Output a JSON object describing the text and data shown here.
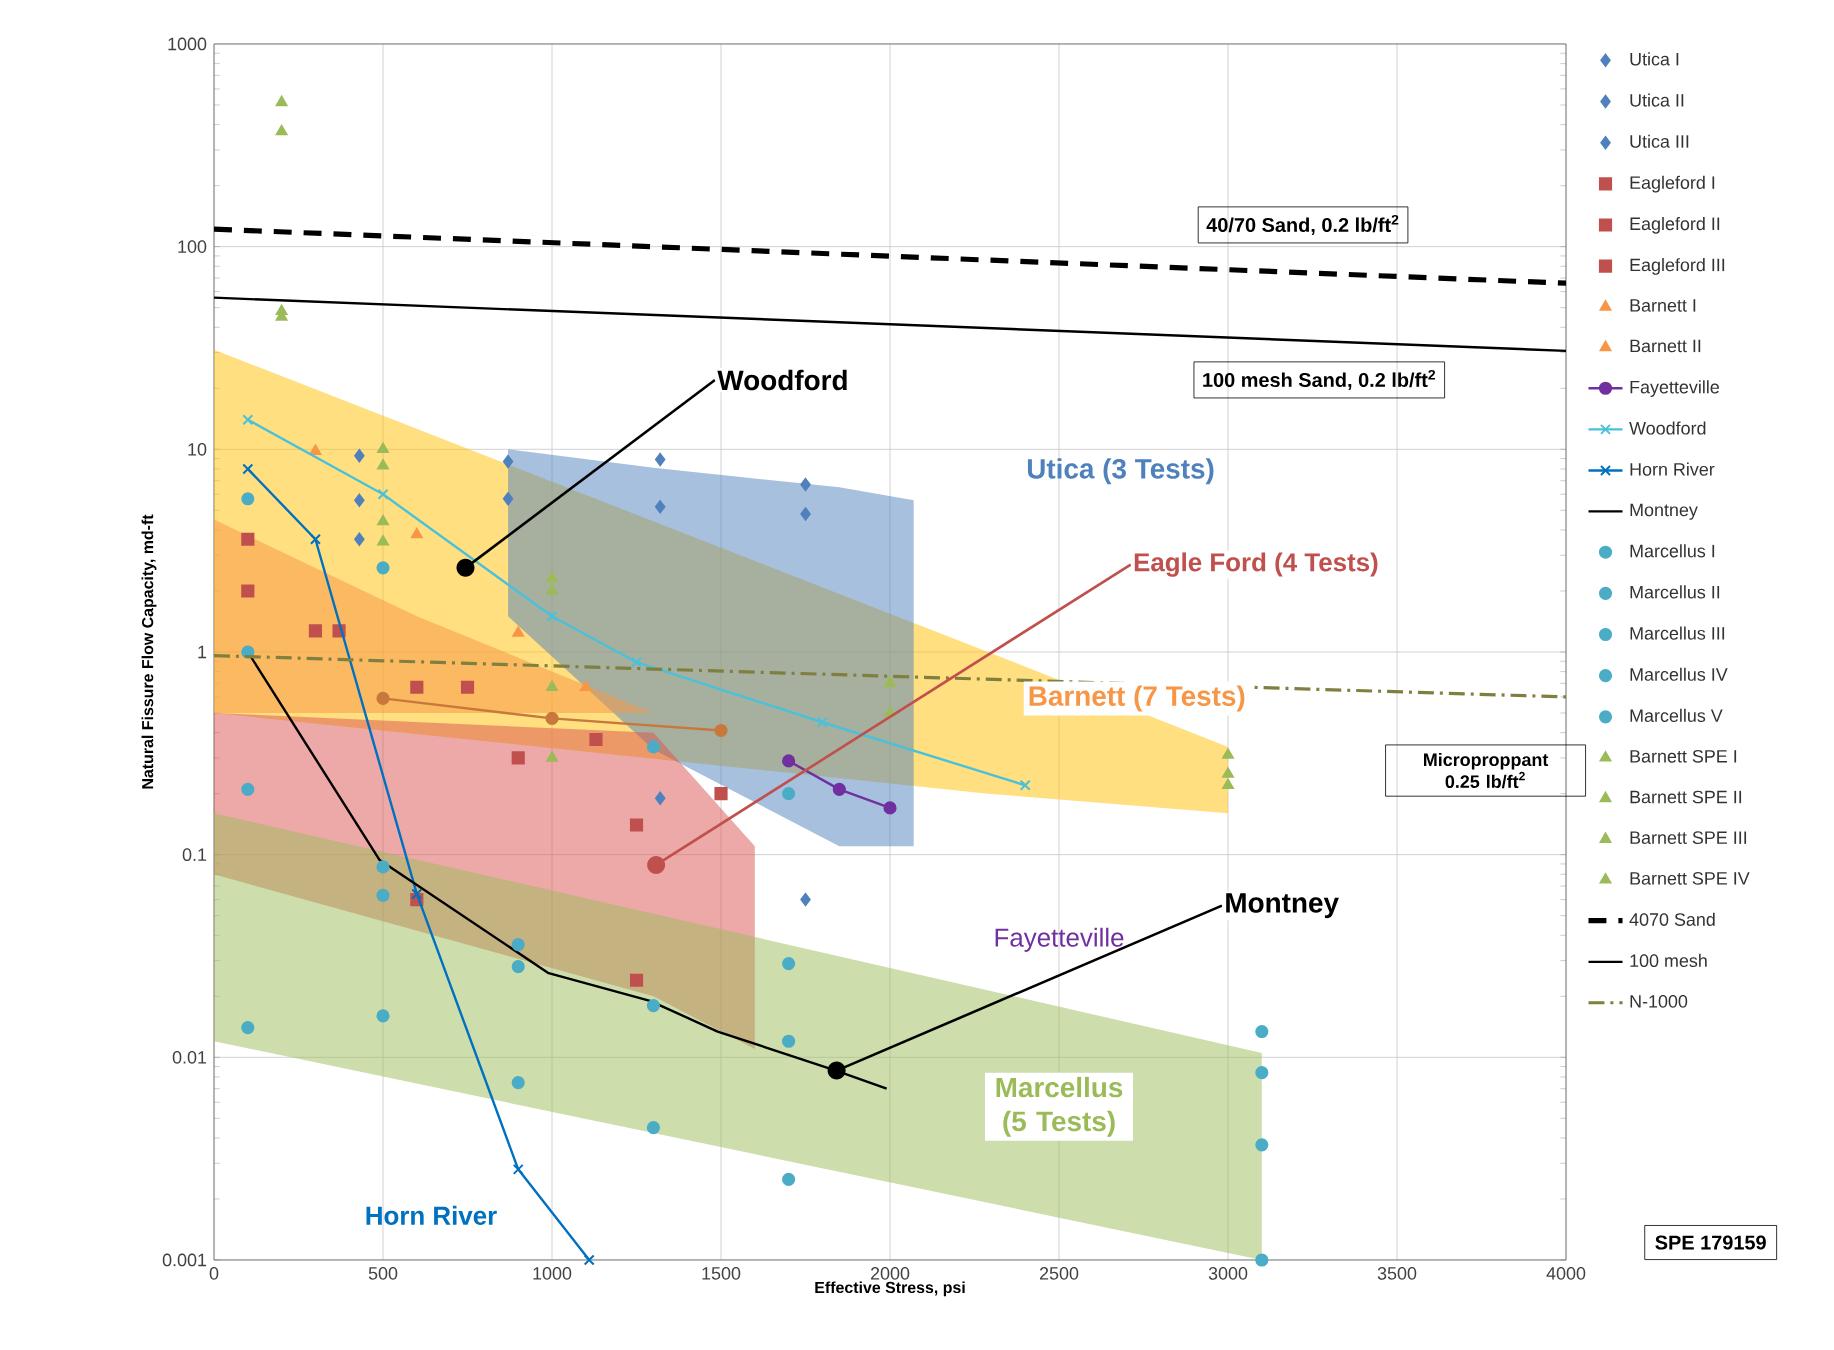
{
  "chart_data": {
    "type": "scatter",
    "xlabel": "Effective Stress, psi",
    "ylabel": "Natural Fissure Flow Capacity, md-ft",
    "xlim": [
      0,
      4000
    ],
    "xticks": [
      0,
      500,
      1000,
      1500,
      2000,
      2500,
      3000,
      3500,
      4000
    ],
    "ylim": [
      0.001,
      1000
    ],
    "yticks": [
      0.001,
      0.01,
      0.1,
      1,
      10,
      100,
      1000
    ],
    "log": "y",
    "grid": true,
    "legend": "right",
    "series": [
      {
        "type": "line",
        "color": "#ffc000",
        "x": [
          0,
          2290,
          3000
        ],
        "values": [
          null,
          null,
          null
        ],
        "upper": [
          31,
          1.0,
          0.34
        ],
        "lower": [
          0.5,
          0.2,
          0.16
        ]
      },
      {
        "type": "line",
        "color": "#4f81bd",
        "x": [
          870,
          1300,
          1850,
          2070
        ],
        "values": [
          null,
          null,
          null,
          null
        ],
        "upper": [
          10,
          8.1,
          6.5,
          5.6
        ],
        "lower": [
          1.5,
          0.33,
          0.11,
          0.11
        ]
      },
      {
        "type": "line",
        "color": "#f79646",
        "x": [
          0,
          600,
          1300
        ],
        "values": [
          null,
          null,
          null
        ],
        "upper": [
          4.5,
          1.5,
          0.5
        ],
        "lower": [
          0.5,
          0.5,
          0.5
        ]
      },
      {
        "type": "line",
        "color": "#d9534f",
        "x": [
          0,
          1300,
          1600
        ],
        "values": [
          null,
          null,
          null
        ],
        "upper": [
          0.5,
          0.4,
          0.11
        ],
        "lower": [
          0.08,
          0.02,
          0.011
        ]
      },
      {
        "type": "line",
        "color": "#9bbb59",
        "x": [
          0,
          3100
        ],
        "values": [
          null,
          null
        ],
        "upper": [
          0.16,
          0.0105
        ],
        "lower": [
          0.012,
          0.001
        ]
      },
      {
        "name": "Utica I",
        "marker": "diamond",
        "color": "#4f81bd",
        "x": [
          430,
          870,
          1320,
          1750
        ],
        "values": [
          9.3,
          8.7,
          8.9,
          6.7
        ]
      },
      {
        "name": "Utica II",
        "marker": "diamond",
        "color": "#4f81bd",
        "x": [
          430,
          870,
          1320,
          1750
        ],
        "values": [
          5.6,
          5.7,
          5.2,
          4.8
        ]
      },
      {
        "name": "Utica III",
        "marker": "diamond",
        "color": "#4f81bd",
        "x": [
          430,
          1320,
          1750
        ],
        "values": [
          3.6,
          0.19,
          0.06
        ]
      },
      {
        "name": "Eagleford I",
        "marker": "square",
        "color": "#c0504d",
        "x": [
          100,
          300,
          600,
          900,
          1250
        ],
        "values": [
          3.6,
          1.27,
          0.67,
          0.3,
          0.14
        ]
      },
      {
        "name": "Eagleford II",
        "marker": "square",
        "color": "#c0504d",
        "x": [
          100,
          370,
          750,
          1130,
          1500
        ],
        "values": [
          2.0,
          1.27,
          0.67,
          0.37,
          0.2
        ]
      },
      {
        "name": "Eagleford III",
        "marker": "square",
        "color": "#c0504d",
        "x": [
          600,
          1250
        ],
        "values": [
          0.06,
          0.024
        ]
      },
      {
        "name": "Barnett I",
        "marker": "triangle",
        "color": "#f79646",
        "x": [
          300,
          600,
          900
        ],
        "values": [
          9.8,
          3.8,
          1.24
        ]
      },
      {
        "name": "Barnett II",
        "marker": "triangle",
        "color": "#f79646",
        "x": [
          1100
        ],
        "values": [
          0.67
        ]
      },
      {
        "type": "line",
        "marker": "circle",
        "color": "#c8783c",
        "x": [
          500,
          1000,
          1500
        ],
        "values": [
          0.59,
          0.47,
          0.41
        ]
      },
      {
        "name": "Fayetteville",
        "type": "line",
        "marker": "circle",
        "color": "#7030a0",
        "x": [
          1700,
          1850,
          2000
        ],
        "values": [
          0.29,
          0.21,
          0.17
        ]
      },
      {
        "name": "Woodford",
        "type": "line",
        "marker": "cross",
        "color": "#4bc1d9",
        "x": [
          100,
          500,
          1000,
          1250,
          1800,
          2400
        ],
        "values": [
          14,
          6,
          1.5,
          0.89,
          0.45,
          0.22
        ]
      },
      {
        "name": "Horn River",
        "type": "line",
        "marker": "cross",
        "color": "#0070c0",
        "x": [
          100,
          300,
          600,
          900,
          1110
        ],
        "values": [
          8,
          3.6,
          0.064,
          0.0028,
          0.001
        ]
      },
      {
        "name": "Montney",
        "type": "line",
        "marker": "none",
        "color": "#000000",
        "x": [
          100,
          490,
          990,
          1290,
          1490,
          1840,
          1990
        ],
        "values": [
          1.0,
          0.094,
          0.026,
          0.019,
          0.0134,
          0.0086,
          0.007
        ]
      },
      {
        "name": "Marcellus I",
        "marker": "circle",
        "color": "#4bacc6",
        "x": [
          100,
          500,
          900,
          1300,
          1700,
          3100
        ],
        "values": [
          5.7,
          2.6,
          0.036,
          0.34,
          0.2,
          0.0134
        ]
      },
      {
        "name": "Marcellus II",
        "marker": "circle",
        "color": "#4bacc6",
        "x": [
          100,
          500,
          900,
          1300,
          1700,
          3100
        ],
        "values": [
          1.0,
          0.087,
          0.028,
          0.018,
          0.029,
          0.0084
        ]
      },
      {
        "name": "Marcellus III",
        "marker": "circle",
        "color": "#4bacc6",
        "x": [
          500,
          900,
          1300,
          1700,
          3100
        ],
        "values": [
          0.063,
          0.0075,
          0.0045,
          0.012,
          0.0037
        ]
      },
      {
        "name": "Marcellus IV",
        "marker": "circle",
        "color": "#4bacc6",
        "x": [
          100,
          500,
          1700,
          3100
        ],
        "values": [
          0.014,
          0.016,
          0.0025,
          0.001
        ]
      },
      {
        "name": "Marcellus V",
        "marker": "circle",
        "color": "#4bacc6",
        "x": [
          100
        ],
        "values": [
          0.21
        ]
      },
      {
        "name": "Barnett SPE I",
        "marker": "triangle",
        "color": "#9bbb59",
        "x": [
          200,
          500,
          1000,
          2000,
          3000
        ],
        "values": [
          515,
          10,
          2.3,
          0.7,
          0.31
        ]
      },
      {
        "name": "Barnett SPE II",
        "marker": "triangle",
        "color": "#9bbb59",
        "x": [
          200,
          500,
          1000,
          2000,
          3000
        ],
        "values": [
          370,
          8.3,
          2.0,
          0.5,
          0.25
        ]
      },
      {
        "name": "Barnett SPE III",
        "marker": "triangle",
        "color": "#9bbb59",
        "x": [
          200,
          500,
          1000,
          3000
        ],
        "values": [
          48,
          4.4,
          0.67,
          0.22
        ]
      },
      {
        "name": "Barnett SPE IV",
        "marker": "triangle",
        "color": "#9bbb59",
        "x": [
          200,
          500,
          1000
        ],
        "values": [
          45,
          3.5,
          0.3
        ]
      },
      {
        "name": "4070 Sand",
        "type": "line",
        "marker": "none",
        "line_style": "dashed",
        "color": "#000000",
        "x": [
          0,
          4000
        ],
        "values": [
          122,
          66
        ]
      },
      {
        "name": "100 mesh",
        "type": "line",
        "marker": "none",
        "color": "#000000",
        "x": [
          0,
          4000
        ],
        "values": [
          56,
          30.6
        ]
      },
      {
        "name": "N-1000",
        "type": "line",
        "marker": "none",
        "line_style": "dashdot",
        "color": "#7f7f3f",
        "x": [
          0,
          4000
        ],
        "values": [
          0.96,
          0.6
        ]
      }
    ],
    "annotations": [
      {
        "text": "Woodford",
        "x": 744,
        "y": 2.6
      },
      "Utica (3 Tests)",
      {
        "text": "Eagle Ford (4 Tests)",
        "x": 1308,
        "y": 0.089
      },
      "Barnett (7 Tests)",
      "Fayetteville",
      {
        "text": "Montney",
        "x": 1842,
        "y": 0.0086
      },
      "Marcellus (5 Tests)",
      "Horn River",
      "40/70 Sand, 0.2 lb/ft$^{2}$",
      "100 mesh Sand, 0.2 lb/ft$^{2}$",
      "Microproppant 0.25 lb/ft$^{2}$",
      "SPE 179159"
    ]
  }
}
